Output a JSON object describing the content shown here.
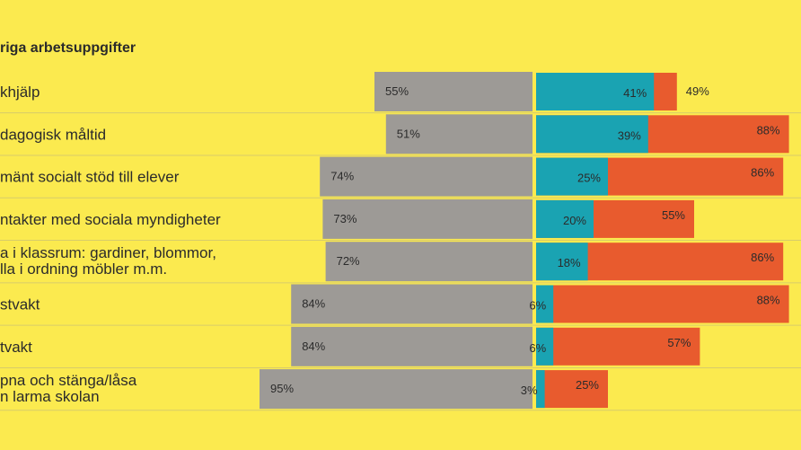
{
  "chart_data": {
    "type": "bar",
    "title": "riga arbetsuppgifter",
    "xlabel": "",
    "ylabel": "",
    "xlim": [
      0,
      100
    ],
    "grid": false,
    "colors": {
      "background": "#fbea4f",
      "grey": "#9d9a96",
      "teal": "#1aa3b2",
      "orange": "#e85b2e",
      "text": "#2b2b2b"
    },
    "rows": [
      {
        "label": [
          "khjälp"
        ],
        "grey": 55,
        "teal": 41,
        "orange": 49
      },
      {
        "label": [
          "dagogisk måltid"
        ],
        "grey": 51,
        "teal": 39,
        "orange": 88
      },
      {
        "label": [
          "mänt socialt stöd till elever"
        ],
        "grey": 74,
        "teal": 25,
        "orange": 86
      },
      {
        "label": [
          "ntakter med sociala myndigheter"
        ],
        "grey": 73,
        "teal": 20,
        "orange": 55
      },
      {
        "label": [
          "a i klassrum: gardiner, blommor,",
          "lla i ordning möbler m.m."
        ],
        "grey": 72,
        "teal": 18,
        "orange": 86
      },
      {
        "label": [
          "stvakt"
        ],
        "grey": 84,
        "teal": 6,
        "orange": 88
      },
      {
        "label": [
          "tvakt"
        ],
        "grey": 84,
        "teal": 6,
        "orange": 57
      },
      {
        "label": [
          "pna och stänga/låsa",
          "n larma skolan"
        ],
        "grey": 95,
        "teal": 3,
        "orange": 25
      }
    ]
  }
}
